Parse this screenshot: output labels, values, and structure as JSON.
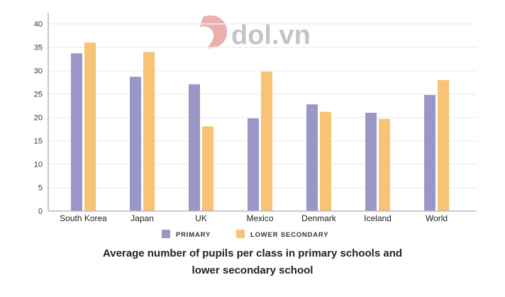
{
  "chart_data": {
    "type": "bar",
    "title": "Average number of pupils per class in primary schools and lower secondary school",
    "title_lines": [
      "Average number of pupils per class in primary schools and",
      "lower secondary school"
    ],
    "categories": [
      "South Korea",
      "Japan",
      "UK",
      "Mexico",
      "Denmark",
      "Iceland",
      "World"
    ],
    "series": [
      {
        "name": "PRIMARY",
        "color": "#9a97c6",
        "values": [
          33.7,
          28.7,
          27.1,
          19.8,
          22.8,
          21.0,
          24.8
        ]
      },
      {
        "name": "LOWER SECONDARY",
        "color": "#f7c374",
        "values": [
          36.0,
          34.0,
          18.1,
          29.8,
          21.2,
          19.7,
          28.0
        ]
      }
    ],
    "xlabel": "",
    "ylabel": "",
    "ylim": [
      0,
      40
    ],
    "yticks": [
      0,
      5,
      10,
      15,
      20,
      25,
      30,
      35,
      40
    ],
    "grid": true,
    "legend": "bottom"
  },
  "watermark": {
    "text": "dol.vn"
  }
}
